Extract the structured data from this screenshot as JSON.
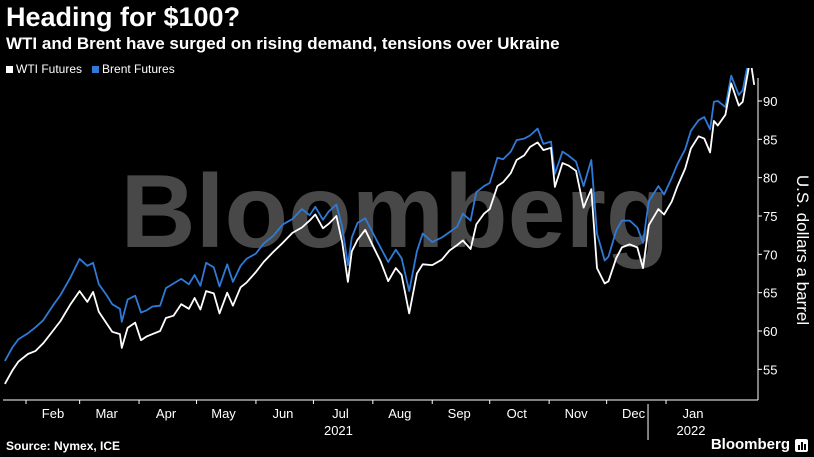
{
  "title": "Heading for $100?",
  "subtitle": "WTI and Brent have surged on rising demand, tensions over Ukraine",
  "source": "Source: Nymex, ICE",
  "brand": "Bloomberg",
  "watermark": "Bloomberg",
  "colors": {
    "wti": "#ffffff",
    "brent": "#2f7ad6",
    "background": "#000000",
    "watermark": "#555555"
  },
  "chart_data": {
    "type": "line",
    "ylabel": "U.S. dollars a barrel",
    "ylim": [
      51,
      93
    ],
    "yticks": [
      55,
      60,
      65,
      70,
      75,
      80,
      85,
      90
    ],
    "xlim": [
      "2021-01-20",
      "2022-02-18"
    ],
    "xticks": [
      {
        "label": "Feb",
        "date": "2021-02-01"
      },
      {
        "label": "Mar",
        "date": "2021-03-01"
      },
      {
        "label": "Apr",
        "date": "2021-04-01"
      },
      {
        "label": "May",
        "date": "2021-05-01"
      },
      {
        "label": "Jun",
        "date": "2021-06-01"
      },
      {
        "label": "Jul",
        "date": "2021-07-01"
      },
      {
        "label": "Aug",
        "date": "2021-08-01"
      },
      {
        "label": "Sep",
        "date": "2021-09-01"
      },
      {
        "label": "Oct",
        "date": "2021-10-01"
      },
      {
        "label": "Nov",
        "date": "2021-11-01"
      },
      {
        "label": "Dec",
        "date": "2021-12-01"
      },
      {
        "label": "Jan",
        "date": "2022-01-01"
      }
    ],
    "year_labels": [
      {
        "label": "2021",
        "date": "2021-07-01"
      },
      {
        "label": "2022",
        "date": "2022-01-01"
      }
    ],
    "grid": false,
    "legend_position": "top-left",
    "series": [
      {
        "name": "WTI Futures",
        "color": "#ffffff",
        "points": [
          [
            "2021-01-21",
            53.1
          ],
          [
            "2021-01-25",
            54.9
          ],
          [
            "2021-01-28",
            56.0
          ],
          [
            "2021-02-02",
            57.0
          ],
          [
            "2021-02-06",
            57.4
          ],
          [
            "2021-02-10",
            58.4
          ],
          [
            "2021-02-15",
            60.0
          ],
          [
            "2021-02-19",
            61.3
          ],
          [
            "2021-02-24",
            63.4
          ],
          [
            "2021-03-01",
            65.2
          ],
          [
            "2021-03-05",
            63.8
          ],
          [
            "2021-03-08",
            65.1
          ],
          [
            "2021-03-11",
            62.5
          ],
          [
            "2021-03-15",
            61.0
          ],
          [
            "2021-03-18",
            59.9
          ],
          [
            "2021-03-22",
            59.6
          ],
          [
            "2021-03-23",
            57.8
          ],
          [
            "2021-03-26",
            60.4
          ],
          [
            "2021-03-30",
            61.1
          ],
          [
            "2021-04-02",
            58.8
          ],
          [
            "2021-04-05",
            59.3
          ],
          [
            "2021-04-08",
            59.6
          ],
          [
            "2021-04-12",
            60.0
          ],
          [
            "2021-04-15",
            61.7
          ],
          [
            "2021-04-19",
            62.0
          ],
          [
            "2021-04-23",
            63.5
          ],
          [
            "2021-04-27",
            62.9
          ],
          [
            "2021-04-30",
            64.3
          ],
          [
            "2021-05-03",
            62.8
          ],
          [
            "2021-05-06",
            65.2
          ],
          [
            "2021-05-10",
            64.9
          ],
          [
            "2021-05-13",
            62.3
          ],
          [
            "2021-05-17",
            65.0
          ],
          [
            "2021-05-20",
            63.3
          ],
          [
            "2021-05-24",
            65.7
          ],
          [
            "2021-05-27",
            66.3
          ],
          [
            "2021-06-01",
            67.7
          ],
          [
            "2021-06-05",
            69.0
          ],
          [
            "2021-06-10",
            70.3
          ],
          [
            "2021-06-15",
            71.5
          ],
          [
            "2021-06-20",
            72.8
          ],
          [
            "2021-06-25",
            73.5
          ],
          [
            "2021-06-29",
            74.4
          ],
          [
            "2021-07-02",
            75.2
          ],
          [
            "2021-07-06",
            73.4
          ],
          [
            "2021-07-09",
            74.0
          ],
          [
            "2021-07-13",
            75.0
          ],
          [
            "2021-07-16",
            71.6
          ],
          [
            "2021-07-19",
            66.4
          ],
          [
            "2021-07-21",
            70.4
          ],
          [
            "2021-07-24",
            71.9
          ],
          [
            "2021-07-28",
            73.2
          ],
          [
            "2021-08-02",
            70.6
          ],
          [
            "2021-08-05",
            69.1
          ],
          [
            "2021-08-09",
            66.5
          ],
          [
            "2021-08-13",
            68.2
          ],
          [
            "2021-08-16",
            67.3
          ],
          [
            "2021-08-20",
            62.3
          ],
          [
            "2021-08-24",
            67.5
          ],
          [
            "2021-08-27",
            68.7
          ],
          [
            "2021-09-01",
            68.6
          ],
          [
            "2021-09-06",
            69.3
          ],
          [
            "2021-09-10",
            70.5
          ],
          [
            "2021-09-14",
            71.2
          ],
          [
            "2021-09-17",
            71.8
          ],
          [
            "2021-09-21",
            70.7
          ],
          [
            "2021-09-24",
            73.9
          ],
          [
            "2021-09-28",
            75.3
          ],
          [
            "2021-10-01",
            75.9
          ],
          [
            "2021-10-05",
            78.9
          ],
          [
            "2021-10-08",
            79.4
          ],
          [
            "2021-10-12",
            80.6
          ],
          [
            "2021-10-15",
            82.3
          ],
          [
            "2021-10-19",
            82.9
          ],
          [
            "2021-10-22",
            84.0
          ],
          [
            "2021-10-26",
            84.6
          ],
          [
            "2021-10-29",
            83.6
          ],
          [
            "2021-11-02",
            83.9
          ],
          [
            "2021-11-04",
            78.8
          ],
          [
            "2021-11-08",
            81.9
          ],
          [
            "2021-11-11",
            81.6
          ],
          [
            "2021-11-15",
            80.9
          ],
          [
            "2021-11-19",
            76.1
          ],
          [
            "2021-11-23",
            78.5
          ],
          [
            "2021-11-26",
            68.2
          ],
          [
            "2021-11-30",
            66.2
          ],
          [
            "2021-12-02",
            66.5
          ],
          [
            "2021-12-06",
            69.5
          ],
          [
            "2021-12-09",
            70.9
          ],
          [
            "2021-12-13",
            71.3
          ],
          [
            "2021-12-17",
            70.9
          ],
          [
            "2021-12-20",
            68.2
          ],
          [
            "2021-12-23",
            73.8
          ],
          [
            "2021-12-28",
            75.9
          ],
          [
            "2021-12-31",
            75.2
          ],
          [
            "2022-01-04",
            76.9
          ],
          [
            "2022-01-07",
            78.9
          ],
          [
            "2022-01-11",
            81.2
          ],
          [
            "2022-01-14",
            83.8
          ],
          [
            "2022-01-18",
            85.4
          ],
          [
            "2022-01-21",
            85.1
          ],
          [
            "2022-01-24",
            83.3
          ],
          [
            "2022-01-26",
            87.4
          ],
          [
            "2022-01-28",
            86.8
          ],
          [
            "2022-02-01",
            88.2
          ],
          [
            "2022-02-04",
            92.3
          ],
          [
            "2022-02-08",
            89.4
          ],
          [
            "2022-02-10",
            89.9
          ],
          [
            "2022-02-14",
            95.5
          ],
          [
            "2022-02-16",
            92.1
          ]
        ]
      },
      {
        "name": "Brent Futures",
        "color": "#2f7ad6",
        "points": [
          [
            "2021-01-21",
            56.1
          ],
          [
            "2021-01-25",
            57.9
          ],
          [
            "2021-01-28",
            58.9
          ],
          [
            "2021-02-02",
            59.7
          ],
          [
            "2021-02-06",
            60.5
          ],
          [
            "2021-02-10",
            61.4
          ],
          [
            "2021-02-15",
            63.3
          ],
          [
            "2021-02-19",
            64.7
          ],
          [
            "2021-02-24",
            66.9
          ],
          [
            "2021-03-01",
            69.4
          ],
          [
            "2021-03-05",
            68.5
          ],
          [
            "2021-03-08",
            68.9
          ],
          [
            "2021-03-11",
            66.1
          ],
          [
            "2021-03-15",
            64.7
          ],
          [
            "2021-03-18",
            63.5
          ],
          [
            "2021-03-22",
            62.9
          ],
          [
            "2021-03-23",
            61.2
          ],
          [
            "2021-03-26",
            64.1
          ],
          [
            "2021-03-30",
            64.6
          ],
          [
            "2021-04-02",
            62.4
          ],
          [
            "2021-04-05",
            62.7
          ],
          [
            "2021-04-08",
            63.2
          ],
          [
            "2021-04-12",
            63.3
          ],
          [
            "2021-04-15",
            65.6
          ],
          [
            "2021-04-19",
            66.2
          ],
          [
            "2021-04-23",
            66.8
          ],
          [
            "2021-04-27",
            66.1
          ],
          [
            "2021-04-30",
            67.3
          ],
          [
            "2021-05-03",
            65.9
          ],
          [
            "2021-05-06",
            68.9
          ],
          [
            "2021-05-10",
            68.3
          ],
          [
            "2021-05-13",
            65.8
          ],
          [
            "2021-05-17",
            68.7
          ],
          [
            "2021-05-20",
            66.4
          ],
          [
            "2021-05-24",
            68.5
          ],
          [
            "2021-05-27",
            69.4
          ],
          [
            "2021-06-01",
            70.1
          ],
          [
            "2021-06-05",
            71.4
          ],
          [
            "2021-06-10",
            72.4
          ],
          [
            "2021-06-15",
            73.9
          ],
          [
            "2021-06-20",
            74.6
          ],
          [
            "2021-06-25",
            75.9
          ],
          [
            "2021-06-29",
            75.1
          ],
          [
            "2021-07-02",
            76.2
          ],
          [
            "2021-07-06",
            74.5
          ],
          [
            "2021-07-09",
            75.6
          ],
          [
            "2021-07-13",
            76.5
          ],
          [
            "2021-07-16",
            73.6
          ],
          [
            "2021-07-19",
            68.6
          ],
          [
            "2021-07-21",
            72.2
          ],
          [
            "2021-07-24",
            74.1
          ],
          [
            "2021-07-28",
            74.7
          ],
          [
            "2021-08-02",
            72.3
          ],
          [
            "2021-08-05",
            70.9
          ],
          [
            "2021-08-09",
            69.0
          ],
          [
            "2021-08-13",
            70.6
          ],
          [
            "2021-08-16",
            69.5
          ],
          [
            "2021-08-20",
            65.2
          ],
          [
            "2021-08-24",
            70.4
          ],
          [
            "2021-08-27",
            72.7
          ],
          [
            "2021-09-01",
            71.6
          ],
          [
            "2021-09-06",
            72.2
          ],
          [
            "2021-09-10",
            72.9
          ],
          [
            "2021-09-14",
            73.6
          ],
          [
            "2021-09-17",
            75.3
          ],
          [
            "2021-09-21",
            74.4
          ],
          [
            "2021-09-24",
            78.1
          ],
          [
            "2021-09-28",
            78.9
          ],
          [
            "2021-10-01",
            79.3
          ],
          [
            "2021-10-05",
            82.6
          ],
          [
            "2021-10-08",
            82.4
          ],
          [
            "2021-10-12",
            83.4
          ],
          [
            "2021-10-15",
            84.9
          ],
          [
            "2021-10-19",
            85.1
          ],
          [
            "2021-10-22",
            85.5
          ],
          [
            "2021-10-26",
            86.4
          ],
          [
            "2021-10-29",
            84.4
          ],
          [
            "2021-11-02",
            84.7
          ],
          [
            "2021-11-04",
            80.5
          ],
          [
            "2021-11-08",
            83.4
          ],
          [
            "2021-11-11",
            82.9
          ],
          [
            "2021-11-15",
            82.1
          ],
          [
            "2021-11-19",
            78.9
          ],
          [
            "2021-11-23",
            82.3
          ],
          [
            "2021-11-26",
            72.7
          ],
          [
            "2021-11-30",
            69.2
          ],
          [
            "2021-12-02",
            69.7
          ],
          [
            "2021-12-06",
            73.1
          ],
          [
            "2021-12-09",
            74.4
          ],
          [
            "2021-12-13",
            74.4
          ],
          [
            "2021-12-17",
            73.5
          ],
          [
            "2021-12-20",
            71.5
          ],
          [
            "2021-12-23",
            76.9
          ],
          [
            "2021-12-28",
            78.9
          ],
          [
            "2021-12-31",
            77.8
          ],
          [
            "2022-01-04",
            80.0
          ],
          [
            "2022-01-07",
            81.8
          ],
          [
            "2022-01-11",
            83.7
          ],
          [
            "2022-01-14",
            86.1
          ],
          [
            "2022-01-18",
            87.5
          ],
          [
            "2022-01-21",
            87.9
          ],
          [
            "2022-01-24",
            86.3
          ],
          [
            "2022-01-26",
            89.9
          ],
          [
            "2022-01-28",
            90.0
          ],
          [
            "2022-02-01",
            89.2
          ],
          [
            "2022-02-04",
            93.3
          ],
          [
            "2022-02-08",
            90.8
          ],
          [
            "2022-02-10",
            91.4
          ],
          [
            "2022-02-14",
            96.5
          ],
          [
            "2022-02-16",
            94.8
          ]
        ]
      }
    ]
  }
}
